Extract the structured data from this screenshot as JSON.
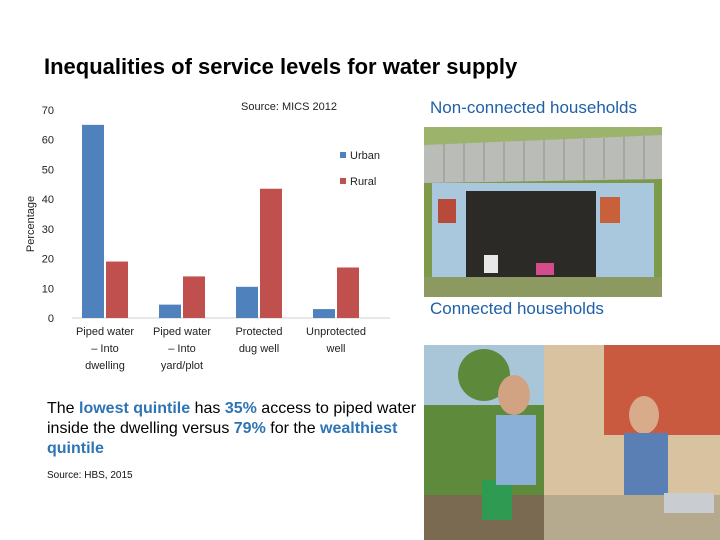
{
  "slide": {
    "title": "Inequalities of service levels for water supply",
    "source_top": "Source: MICS 2012",
    "label_nonconnected": "Non-connected households",
    "label_connected": "Connected households",
    "body": {
      "t1": "The ",
      "h1": "lowest quintile",
      "t2": " has ",
      "h2": "35%",
      "t3": " access to piped water inside the dwelling versus ",
      "h3": "79%",
      "t4": " for the ",
      "h4": "wealthiest quintile"
    },
    "source_bottom": "Source: HBS, 2015"
  },
  "chart_data": {
    "type": "bar",
    "ylabel": "Percentage",
    "ylim": [
      0,
      70
    ],
    "yticks": [
      0,
      10,
      20,
      30,
      40,
      50,
      60,
      70
    ],
    "categories": [
      [
        "Piped water",
        "– Into",
        "dwelling"
      ],
      [
        "Piped water",
        "– Into",
        "yard/plot"
      ],
      [
        "Protected",
        "dug well"
      ],
      [
        "Unprotected",
        "well"
      ]
    ],
    "series": [
      {
        "name": "Urban",
        "color": "#4f81bd",
        "values": [
          65,
          4.5,
          10.5,
          3
        ]
      },
      {
        "name": "Rural",
        "color": "#c0504d",
        "values": [
          19,
          14,
          43.5,
          17
        ]
      }
    ],
    "grid": false,
    "legend": "right"
  }
}
